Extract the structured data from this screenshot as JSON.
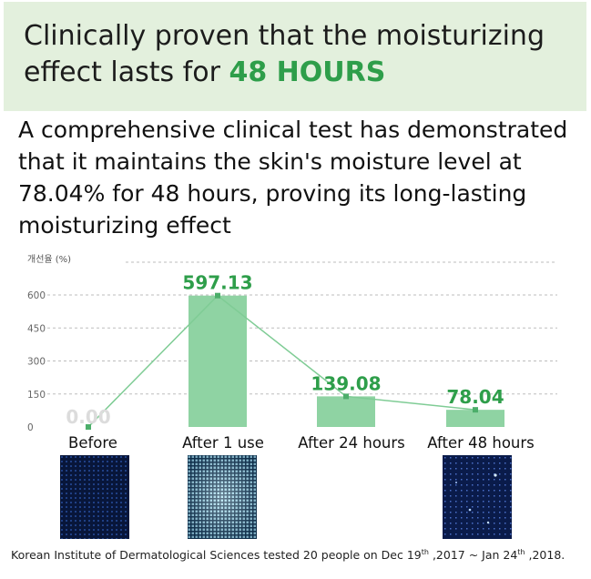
{
  "header": {
    "title_line1": "Clinically proven that the moisturizing",
    "title_line2_prefix": "effect lasts for ",
    "title_highlight": "48 HOURS",
    "highlight_color": "#2e9e4a",
    "background_color": "#e3f0dd"
  },
  "description": "A comprehensive clinical test has demonstrated that it maintains the skin's moisture level at 78.04% for 48 hours, proving its long-lasting moisturizing effect",
  "chart_data": {
    "type": "bar",
    "ylabel": "개선율 (%)",
    "yticks": [
      0,
      150,
      300,
      450,
      600
    ],
    "ylim": [
      0,
      650
    ],
    "categories": [
      "Before",
      "After 1 use",
      "After 24 hours",
      "After 48 hours"
    ],
    "values": [
      0.0,
      597.13,
      139.08,
      78.04
    ],
    "value_labels": [
      "0.00",
      "597.13",
      "139.08",
      "78.04"
    ],
    "line_overlay": true,
    "grid": "dashed horizontal",
    "bar_color": "#8fd3a3",
    "label_color": "#2e9e4a",
    "line_color": "#7fcc95",
    "first_label_color": "#dcdcdc"
  },
  "images": [
    {
      "icon": "skin-before-image"
    },
    {
      "icon": "skin-after-1-use-image"
    },
    {
      "icon": "skin-after-48-hours-image"
    }
  ],
  "footer": {
    "text_before": "Korean Institute of Dermatological Sciences tested 20 people on Dec 19",
    "sup1": "th",
    "text_mid": " ,2017 ~ Jan 24",
    "sup2": "th",
    "text_after": " ,2018."
  }
}
